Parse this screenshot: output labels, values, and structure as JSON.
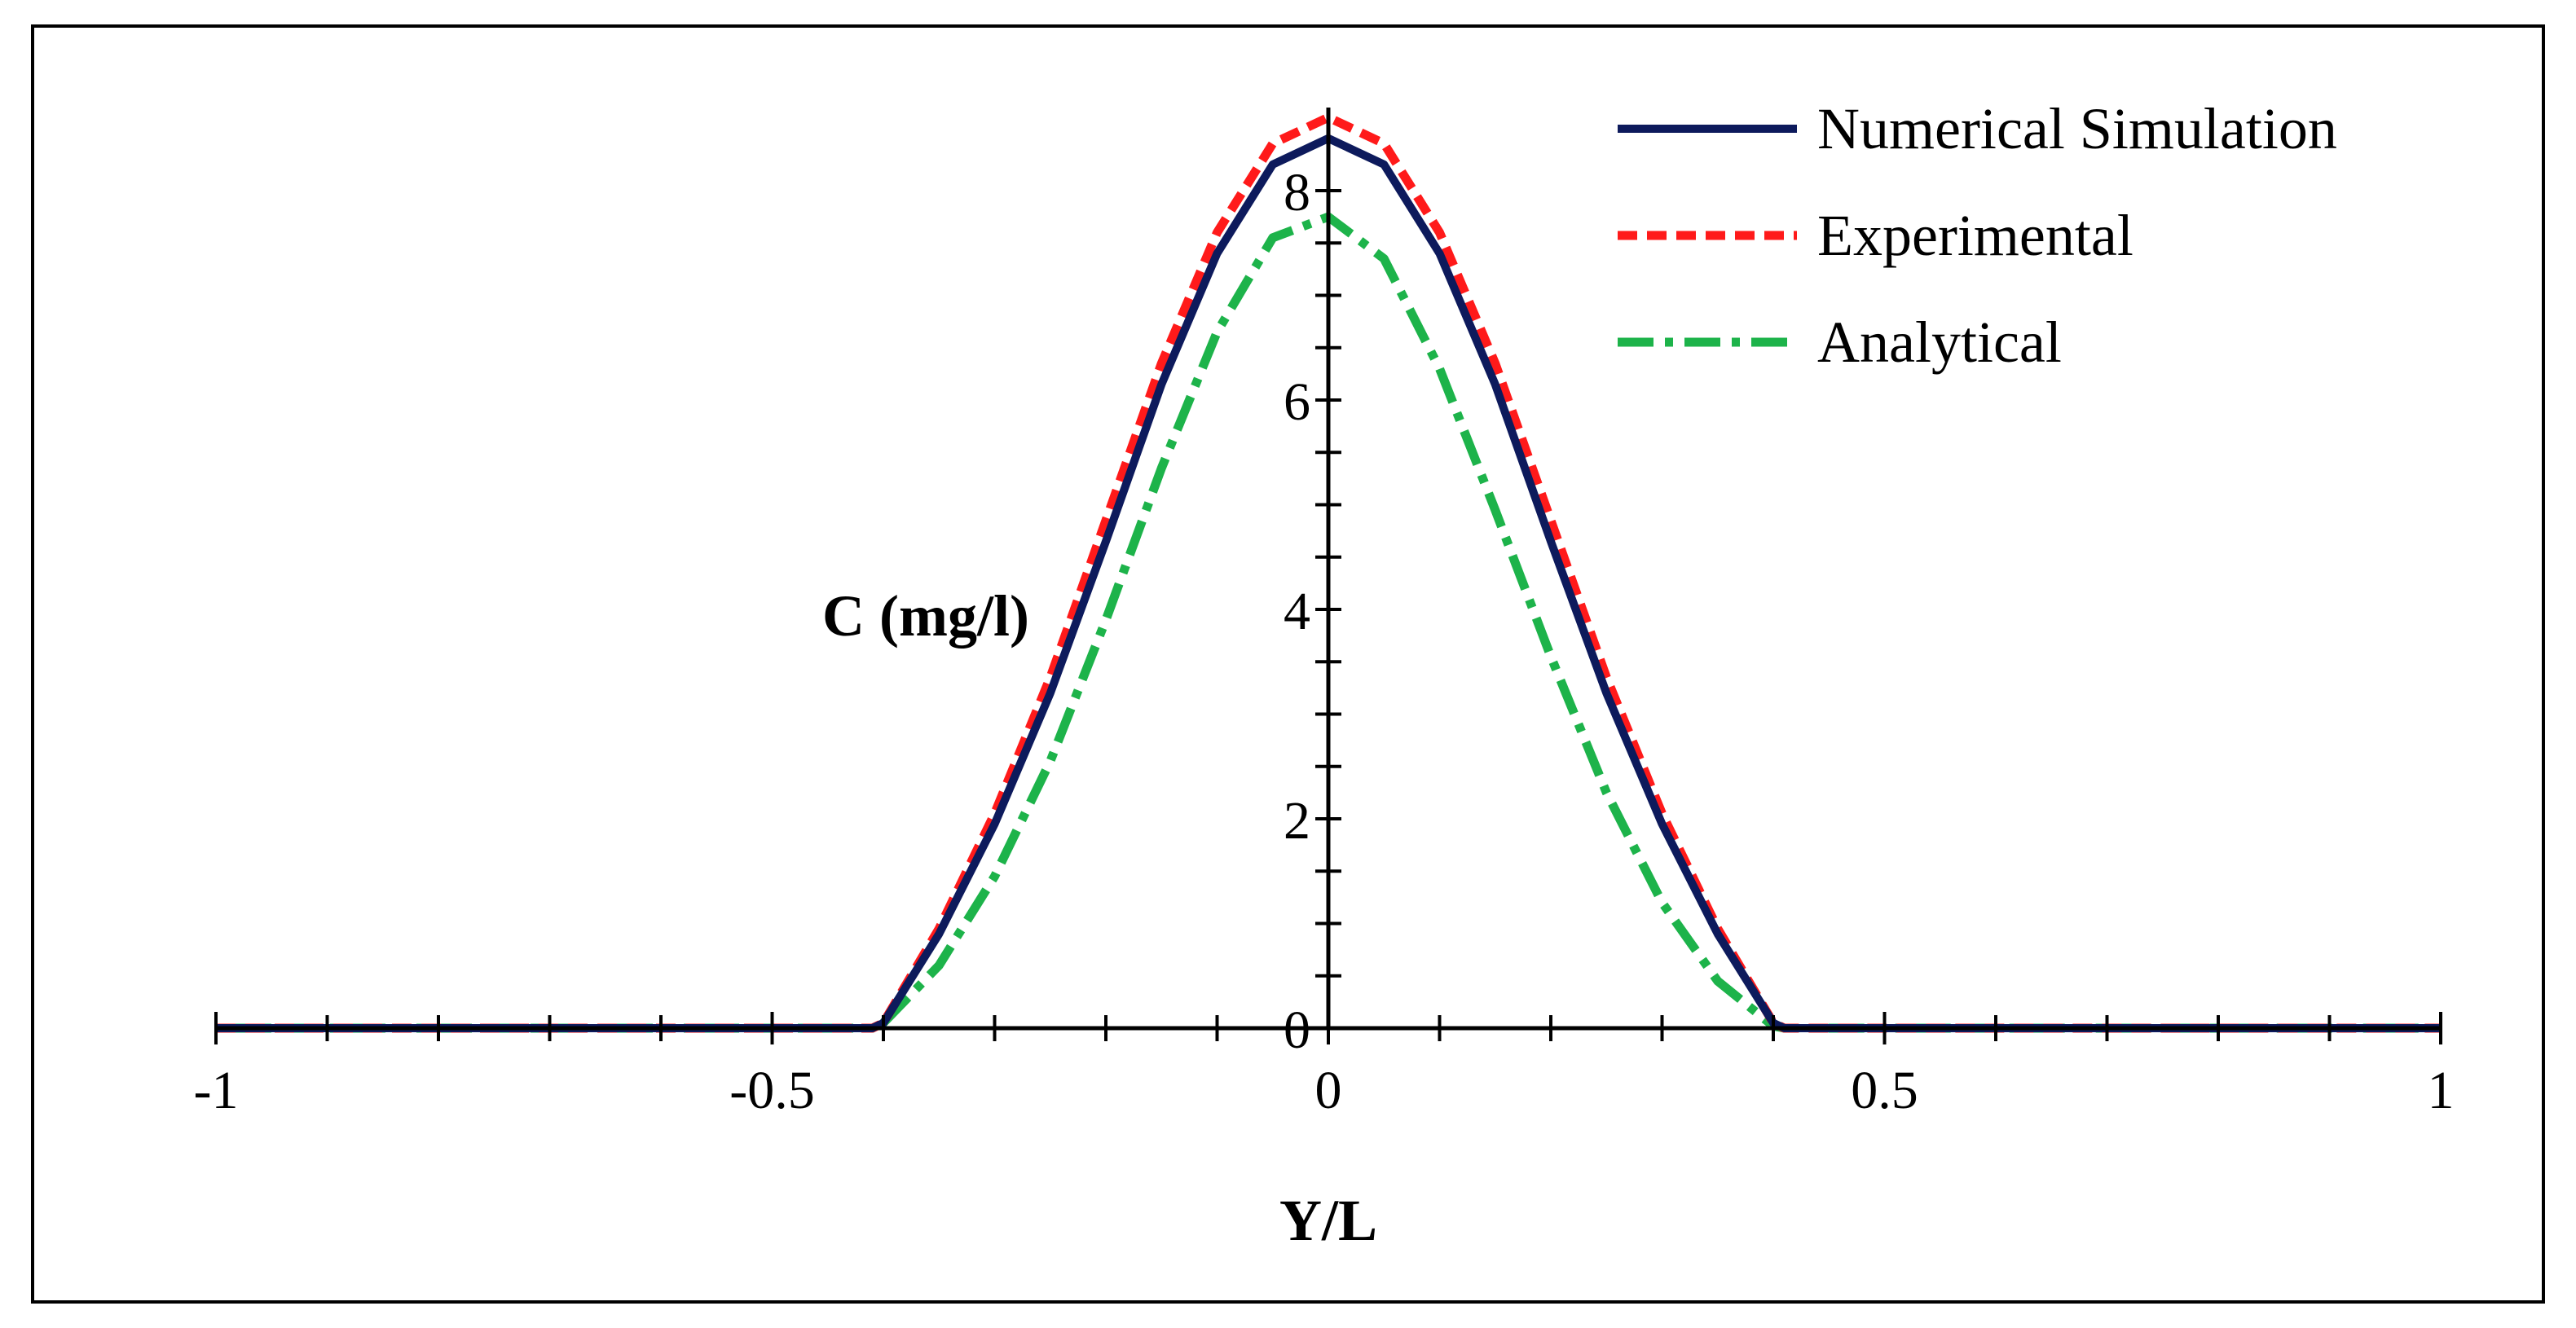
{
  "chart_data": {
    "type": "line",
    "title": "",
    "xlabel": "Y/L",
    "ylabel": "C (mg/l)",
    "xlim": [
      -1,
      1
    ],
    "ylim": [
      0,
      8.7
    ],
    "x_ticks": [
      "-1",
      "-0.5",
      "0",
      "0.5",
      "1"
    ],
    "y_ticks": [
      "0",
      "2",
      "4",
      "6",
      "8"
    ],
    "grid": false,
    "legend_position": "top-right",
    "series": [
      {
        "name": "Numerical Simulation",
        "color": "#0d1a5c",
        "style": "solid",
        "x": [
          -1,
          -0.8,
          -0.6,
          -0.5,
          -0.41,
          -0.4,
          -0.35,
          -0.3,
          -0.25,
          -0.2,
          -0.15,
          -0.1,
          -0.05,
          0,
          0.05,
          0.1,
          0.15,
          0.2,
          0.25,
          0.3,
          0.35,
          0.4,
          0.41,
          0.5,
          0.6,
          0.8,
          1
        ],
        "values": [
          0,
          0,
          0,
          0,
          0,
          0.05,
          0.9,
          1.95,
          3.2,
          4.65,
          6.15,
          7.4,
          8.25,
          8.5,
          8.25,
          7.4,
          6.15,
          4.65,
          3.2,
          1.95,
          0.9,
          0.05,
          0,
          0,
          0,
          0,
          0
        ]
      },
      {
        "name": "Experimental",
        "color": "#ff1a1a",
        "style": "dashed",
        "x": [
          -1,
          -0.8,
          -0.6,
          -0.5,
          -0.41,
          -0.4,
          -0.35,
          -0.3,
          -0.25,
          -0.2,
          -0.15,
          -0.1,
          -0.05,
          0,
          0.05,
          0.1,
          0.15,
          0.2,
          0.25,
          0.3,
          0.35,
          0.4,
          0.41,
          0.5,
          0.6,
          0.8,
          1
        ],
        "values": [
          0,
          0,
          0,
          0,
          0,
          0.05,
          0.95,
          2.05,
          3.35,
          4.85,
          6.35,
          7.6,
          8.45,
          8.7,
          8.45,
          7.6,
          6.35,
          4.85,
          3.35,
          2.05,
          0.95,
          0.05,
          0,
          0,
          0,
          0,
          0
        ]
      },
      {
        "name": "Analytical",
        "color": "#1db34a",
        "style": "dash-dot",
        "x": [
          -1,
          -0.8,
          -0.6,
          -0.5,
          -0.41,
          -0.4,
          -0.35,
          -0.3,
          -0.25,
          -0.2,
          -0.15,
          -0.1,
          -0.05,
          0,
          0.05,
          0.1,
          0.15,
          0.2,
          0.25,
          0.3,
          0.35,
          0.4,
          0.41,
          0.5,
          0.6,
          0.8,
          1
        ],
        "values": [
          0,
          0,
          0,
          0,
          0,
          0.05,
          0.6,
          1.45,
          2.55,
          3.9,
          5.35,
          6.65,
          7.55,
          7.75,
          7.35,
          6.3,
          4.95,
          3.55,
          2.25,
          1.2,
          0.45,
          0.02,
          0,
          0,
          0,
          0,
          0
        ]
      }
    ]
  }
}
